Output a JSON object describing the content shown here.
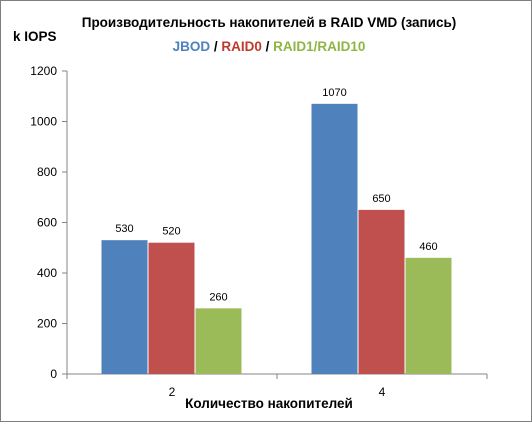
{
  "chart_data": {
    "type": "bar",
    "title": "Производительность накопителей в RAID VMD (запись)",
    "subtitle_parts": [
      {
        "text": "JBOD",
        "color": "#4f81bd"
      },
      {
        "text": " / ",
        "color": "#000000"
      },
      {
        "text": "RAID0",
        "color": "#c0392b"
      },
      {
        "text": " / ",
        "color": "#000000"
      },
      {
        "text": "RAID1/RAID10",
        "color": "#8fb543"
      }
    ],
    "ylabel": "k IOPS",
    "xlabel": "Количество накопителей",
    "categories": [
      "2",
      "4"
    ],
    "series": [
      {
        "name": "JBOD",
        "values": [
          530,
          1070
        ],
        "color": "#4f81bd"
      },
      {
        "name": "RAID0",
        "values": [
          520,
          650
        ],
        "color": "#c0504d"
      },
      {
        "name": "RAID1/RAID10",
        "values": [
          260,
          460
        ],
        "color": "#9bbb59"
      }
    ],
    "ylim": [
      0,
      1200
    ],
    "yticks": [
      0,
      200,
      400,
      600,
      800,
      1000,
      1200
    ],
    "grid": false,
    "legend": "none"
  }
}
